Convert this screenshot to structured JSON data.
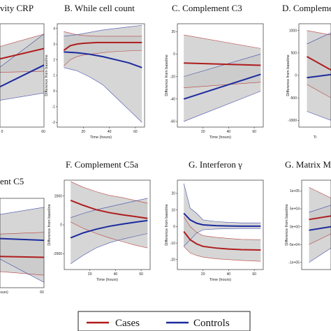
{
  "colors": {
    "cases": "#b01c1c",
    "controls": "#1c2a9e",
    "ci_fill": "#c8c8c8",
    "overlap_fill": "#9a9a9a"
  },
  "legend": {
    "cases_label": "Cases",
    "controls_label": "Controls"
  },
  "chart_data": [
    {
      "type": "line",
      "title": "vity CRP",
      "xlabel": "",
      "ylabel": "",
      "xticks": [],
      "xtick_labels": [
        "0",
        "60"
      ],
      "yticks": [],
      "ytick_labels": [],
      "xlim": [
        0,
        65
      ],
      "ylim": [
        0,
        10
      ],
      "grid": false,
      "series": [
        {
          "name": "Cases",
          "x": [
            0,
            65
          ],
          "y": [
            6.6,
            7.6
          ],
          "lower": [
            5.3,
            5.4
          ],
          "upper": [
            7.8,
            9.0
          ]
        },
        {
          "name": "Controls",
          "x": [
            0,
            65
          ],
          "y": [
            3.9,
            6.0
          ],
          "lower": [
            2.6,
            3.3
          ],
          "upper": [
            5.8,
            9.0
          ]
        }
      ]
    },
    {
      "type": "line",
      "title": "B. While cell count",
      "xlabel": "Time (hours)",
      "ylabel": "Difference from baseline",
      "xticks": [
        20,
        40,
        60
      ],
      "xtick_labels": [
        "20",
        "40",
        "60"
      ],
      "yticks": [
        -2,
        -1,
        0,
        1,
        2,
        3,
        4
      ],
      "ytick_labels": [
        "-2",
        "-1",
        "0",
        "1",
        "2",
        "3",
        "4"
      ],
      "xlim": [
        0,
        67
      ],
      "ylim": [
        -2.3,
        4.3
      ],
      "grid": false,
      "series": [
        {
          "name": "Cases",
          "x": [
            5,
            10,
            15,
            20,
            30,
            40,
            50,
            65
          ],
          "y": [
            2.6,
            2.9,
            3.0,
            3.05,
            3.1,
            3.1,
            3.1,
            3.1
          ],
          "lower": [
            1.6,
            2.0,
            2.2,
            2.3,
            2.4,
            2.5,
            2.55,
            2.6
          ],
          "upper": [
            3.8,
            3.7,
            3.6,
            3.55,
            3.5,
            3.5,
            3.5,
            3.5
          ]
        },
        {
          "name": "Controls",
          "x": [
            5,
            15,
            25,
            35,
            45,
            55,
            65
          ],
          "y": [
            2.5,
            2.45,
            2.35,
            2.2,
            2.0,
            1.8,
            1.5
          ],
          "lower": [
            1.5,
            1.3,
            0.9,
            0.4,
            -0.4,
            -1.2,
            -2.0
          ],
          "upper": [
            3.5,
            3.6,
            3.75,
            3.9,
            4.0,
            4.1,
            4.2
          ]
        }
      ]
    },
    {
      "type": "line",
      "title": "C. Complement C3",
      "xlabel": "Time (hours)",
      "ylabel": "Difference from baseline",
      "xticks": [
        20,
        40,
        60
      ],
      "xtick_labels": [
        "20",
        "40",
        "60"
      ],
      "yticks": [
        -60,
        -40,
        -20,
        0,
        20
      ],
      "ytick_labels": [
        "-60",
        "-40",
        "-20",
        "0",
        "20"
      ],
      "xlim": [
        0,
        67
      ],
      "ylim": [
        -65,
        27
      ],
      "grid": false,
      "series": [
        {
          "name": "Cases",
          "x": [
            5,
            65
          ],
          "y": [
            -8,
            -10
          ],
          "lower": [
            -30,
            -25
          ],
          "upper": [
            17,
            5
          ]
        },
        {
          "name": "Controls",
          "x": [
            5,
            65
          ],
          "y": [
            -40,
            -18
          ],
          "lower": [
            -60,
            -33
          ],
          "upper": [
            -20,
            0
          ]
        }
      ]
    },
    {
      "type": "line",
      "title": "D. Complemen",
      "xlabel": "Ti",
      "ylabel": "Difference from baseline",
      "xticks": [],
      "xtick_labels": [],
      "yticks": [
        -1000,
        -500,
        0,
        500,
        1000
      ],
      "ytick_labels": [
        "-1000",
        "-500",
        "0",
        "500",
        "1000"
      ],
      "xlim": [
        0,
        20
      ],
      "ylim": [
        -1150,
        1150
      ],
      "grid": false,
      "series": [
        {
          "name": "Cases",
          "x": [
            5,
            20
          ],
          "y": [
            420,
            120
          ],
          "lower": [
            -200,
            -500
          ],
          "upper": [
            1000,
            900
          ]
        },
        {
          "name": "Controls",
          "x": [
            5,
            20
          ],
          "y": [
            -50,
            20
          ],
          "lower": [
            -800,
            -1000
          ],
          "upper": [
            700,
            950
          ]
        }
      ]
    },
    {
      "type": "line",
      "title": "ent C5",
      "xlabel": "",
      "ylabel": "",
      "xticks": [],
      "xtick_labels": [
        "ours)",
        "60"
      ],
      "yticks": [],
      "ytick_labels": [],
      "xlim": [
        0,
        65
      ],
      "ylim": [
        0,
        10
      ],
      "grid": false,
      "series": [
        {
          "name": "Cases",
          "x": [
            0,
            65
          ],
          "y": [
            3.5,
            3.4
          ],
          "lower": [
            1.8,
            1.4
          ],
          "upper": [
            6.0,
            6.2
          ]
        },
        {
          "name": "Controls",
          "x": [
            0,
            65
          ],
          "y": [
            5.5,
            5.3
          ],
          "lower": [
            3.2,
            0.6
          ],
          "upper": [
            8.2,
            9.0
          ]
        }
      ]
    },
    {
      "type": "line",
      "title": "F. Complement C5a",
      "xlabel": "Time (hours)",
      "ylabel": "Difference from baseline",
      "xticks": [
        20,
        40,
        60
      ],
      "xtick_labels": [
        "20",
        "40",
        "60"
      ],
      "yticks": [
        -2000,
        0,
        2000
      ],
      "ytick_labels": [
        "-2000",
        "0",
        "2000"
      ],
      "xlim": [
        0,
        67
      ],
      "ylim": [
        -3100,
        3100
      ],
      "grid": false,
      "series": [
        {
          "name": "Cases",
          "x": [
            5,
            15,
            25,
            35,
            45,
            55,
            65
          ],
          "y": [
            1700,
            1350,
            1050,
            850,
            700,
            580,
            450
          ],
          "lower": [
            200,
            -250,
            -600,
            -900,
            -1150,
            -1400,
            -1600
          ],
          "upper": [
            3000,
            2600,
            2300,
            2050,
            1900,
            1700,
            1500
          ]
        },
        {
          "name": "Controls",
          "x": [
            5,
            15,
            25,
            35,
            45,
            55,
            65
          ],
          "y": [
            -900,
            -550,
            -300,
            -100,
            50,
            180,
            300
          ],
          "lower": [
            -2700,
            -2100,
            -1600,
            -1250,
            -1000,
            -800,
            -600
          ],
          "upper": [
            500,
            800,
            1050,
            1250,
            1450,
            1650,
            1850
          ]
        }
      ]
    },
    {
      "type": "line",
      "title": "G. Interferon γ",
      "xlabel": "Time (hours)",
      "ylabel": "Difference from baseline",
      "xticks": [
        20,
        40,
        60
      ],
      "xtick_labels": [
        "20",
        "40",
        "60"
      ],
      "yticks": [
        -20,
        -10,
        0,
        10,
        20
      ],
      "ytick_labels": [
        "-20",
        "-10",
        "0",
        "10",
        "20"
      ],
      "xlim": [
        0,
        67
      ],
      "ylim": [
        -26,
        28
      ],
      "grid": false,
      "series": [
        {
          "name": "Cases",
          "x": [
            5,
            10,
            15,
            20,
            30,
            40,
            50,
            65
          ],
          "y": [
            -3,
            -8,
            -10.5,
            -12,
            -13,
            -13.6,
            -14,
            -14.2
          ],
          "lower": [
            -12,
            -16,
            -17.5,
            -18.5,
            -19.5,
            -20,
            -20.5,
            -21
          ],
          "upper": [
            6,
            0,
            -3.5,
            -5.5,
            -6.5,
            -7.2,
            -7.8,
            -8
          ]
        },
        {
          "name": "Controls",
          "x": [
            5,
            10,
            15,
            20,
            30,
            40,
            50,
            65
          ],
          "y": [
            8,
            4,
            2,
            1,
            0.5,
            0.3,
            0.2,
            0.2
          ],
          "lower": [
            -12,
            -8,
            -4,
            -2,
            -1.5,
            -1.3,
            -1.2,
            -1.2
          ],
          "upper": [
            26,
            11,
            8,
            4,
            3,
            2.5,
            2.2,
            2.2
          ]
        }
      ]
    },
    {
      "type": "line",
      "title": "G. Matrix M",
      "xlabel": "",
      "ylabel": "Difference from baseline",
      "xticks": [],
      "xtick_labels": [],
      "yticks": [
        -100000.0,
        -50000.0,
        0,
        50000.0,
        100000.0
      ],
      "ytick_labels": [
        "-1e+05",
        "-5e+04",
        "0e+00",
        "5e+04",
        "1e+05"
      ],
      "xlim": [
        0,
        20
      ],
      "ylim": [
        -120000,
        130000
      ],
      "grid": false,
      "series": [
        {
          "name": "Cases",
          "x": [
            5,
            20
          ],
          "y": [
            20000,
            30000
          ],
          "lower": [
            -50000,
            -20000
          ],
          "upper": [
            110000,
            80000
          ]
        },
        {
          "name": "Controls",
          "x": [
            5,
            20
          ],
          "y": [
            -10000,
            0
          ],
          "lower": [
            -100000,
            -60000
          ],
          "upper": [
            40000,
            60000
          ]
        }
      ]
    }
  ]
}
